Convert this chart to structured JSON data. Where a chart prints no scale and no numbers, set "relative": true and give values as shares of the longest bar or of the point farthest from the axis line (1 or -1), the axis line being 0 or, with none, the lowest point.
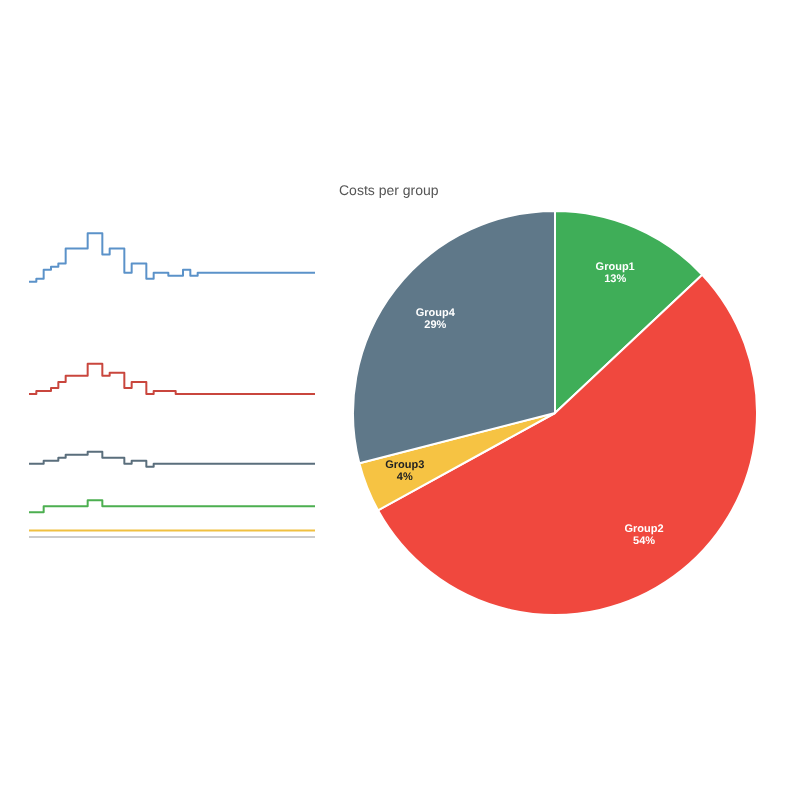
{
  "chart_data": [
    {
      "type": "step",
      "relative": true,
      "categories": [
        null,
        null,
        null,
        null,
        null,
        null,
        null,
        null,
        null,
        null,
        null,
        null,
        null,
        null,
        null,
        null,
        null,
        null,
        null,
        null,
        null,
        null,
        null,
        null,
        null,
        null,
        null,
        null,
        null,
        null,
        null,
        null,
        null,
        null,
        null,
        null,
        null,
        null,
        null,
        null
      ],
      "series": [
        {
          "color": "#5b92c9",
          "values": [
            0.84,
            0.85,
            0.88,
            0.89,
            0.9,
            0.95,
            0.95,
            0.95,
            1.0,
            1.0,
            0.93,
            0.95,
            0.95,
            0.87,
            0.9,
            0.9,
            0.85,
            0.87,
            0.87,
            0.86,
            0.86,
            0.88,
            0.86,
            0.87,
            0.87,
            0.87,
            0.87,
            0.87,
            0.87,
            0.87,
            0.87,
            0.87,
            0.87,
            0.87,
            0.87,
            0.87,
            0.87,
            0.87,
            0.87,
            0.87
          ]
        },
        {
          "color": "#c9463d",
          "values": [
            0.47,
            0.48,
            0.48,
            0.49,
            0.51,
            0.53,
            0.53,
            0.53,
            0.57,
            0.57,
            0.53,
            0.54,
            0.54,
            0.49,
            0.51,
            0.51,
            0.47,
            0.48,
            0.48,
            0.48,
            0.47,
            0.47,
            0.47,
            0.47,
            0.47,
            0.47,
            0.47,
            0.47,
            0.47,
            0.47,
            0.47,
            0.47,
            0.47,
            0.47,
            0.47,
            0.47,
            0.47,
            0.47,
            0.47,
            0.47
          ]
        },
        {
          "color": "#5a6e7c",
          "values": [
            0.24,
            0.24,
            0.25,
            0.25,
            0.26,
            0.27,
            0.27,
            0.27,
            0.28,
            0.28,
            0.26,
            0.26,
            0.26,
            0.24,
            0.25,
            0.25,
            0.23,
            0.24,
            0.24,
            0.24,
            0.24,
            0.24,
            0.24,
            0.24,
            0.24,
            0.24,
            0.24,
            0.24,
            0.24,
            0.24,
            0.24,
            0.24,
            0.24,
            0.24,
            0.24,
            0.24,
            0.24,
            0.24,
            0.24,
            0.24
          ]
        },
        {
          "color": "#4caf50",
          "values": [
            0.08,
            0.08,
            0.1,
            0.1,
            0.1,
            0.1,
            0.1,
            0.1,
            0.12,
            0.12,
            0.1,
            0.1,
            0.1,
            0.1,
            0.1,
            0.1,
            0.1,
            0.1,
            0.1,
            0.1,
            0.1,
            0.1,
            0.1,
            0.1,
            0.1,
            0.1,
            0.1,
            0.1,
            0.1,
            0.1,
            0.1,
            0.1,
            0.1,
            0.1,
            0.1,
            0.1,
            0.1,
            0.1,
            0.1,
            0.1
          ]
        },
        {
          "color": "#f0c040",
          "values": [
            0.02,
            0.02,
            0.02,
            0.02,
            0.02,
            0.02,
            0.02,
            0.02,
            0.02,
            0.02,
            0.02,
            0.02,
            0.02,
            0.02,
            0.02,
            0.02,
            0.02,
            0.02,
            0.02,
            0.02,
            0.02,
            0.02,
            0.02,
            0.02,
            0.02,
            0.02,
            0.02,
            0.02,
            0.02,
            0.02,
            0.02,
            0.02,
            0.02,
            0.02,
            0.02,
            0.02,
            0.02,
            0.02,
            0.02,
            0.02
          ]
        }
      ]
    },
    {
      "type": "pie",
      "title": "Costs per group",
      "categories": [
        "Group1",
        "Group2",
        "Group3",
        "Group4"
      ],
      "values": [
        13,
        54,
        4,
        29
      ],
      "colors": [
        "#3fae58",
        "#f0483e",
        "#f6c343",
        "#5f7889"
      ],
      "value_labels": [
        "13%",
        "54%",
        "4%",
        "29%"
      ]
    }
  ]
}
